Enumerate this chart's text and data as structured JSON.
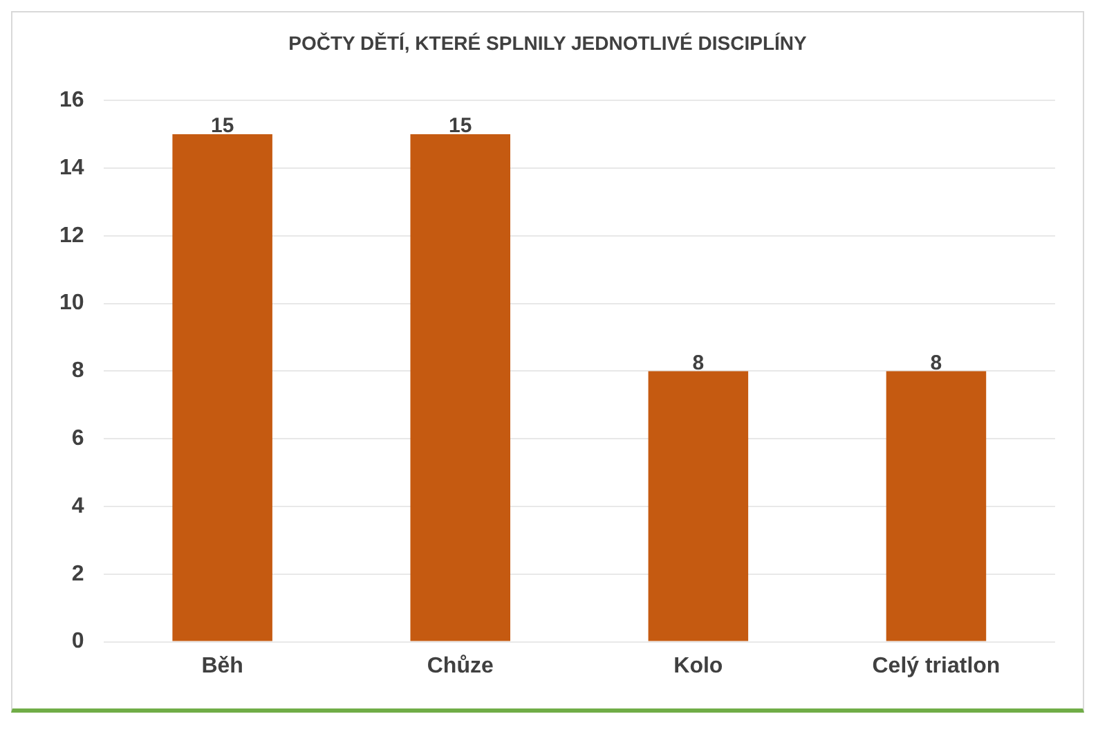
{
  "chart_data": {
    "type": "bar",
    "title": "POČTY DĚTÍ, KTERÉ SPLNILY JEDNOTLIVÉ DISCIPLÍNY",
    "categories": [
      "Běh",
      "Chůze",
      "Kolo",
      "Celý triatlon"
    ],
    "series": [
      {
        "color": "#c55a11",
        "values": [
          15,
          15,
          8,
          8
        ]
      }
    ],
    "ylim": [
      0,
      16
    ],
    "yticks": [
      0,
      2,
      4,
      6,
      8,
      10,
      12,
      14,
      16
    ],
    "grid": "y",
    "data_labels": true,
    "legend": false
  }
}
